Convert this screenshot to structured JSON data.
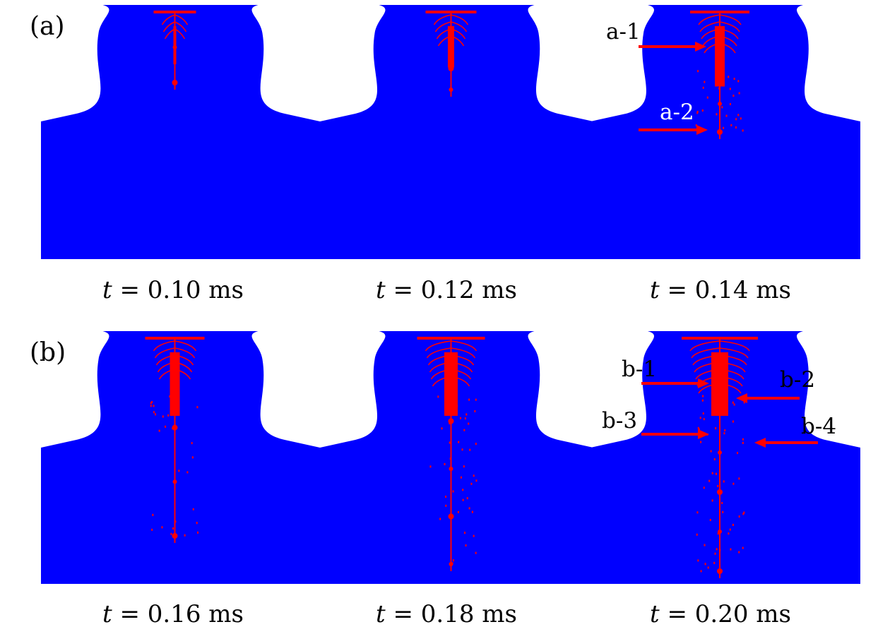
{
  "panels": [
    {
      "label": "(a)",
      "frames": [
        {
          "t_symbol": "t",
          "equals": "=",
          "value": "0.10",
          "unit": "ms"
        },
        {
          "t_symbol": "t",
          "equals": "=",
          "value": "0.12",
          "unit": "ms"
        },
        {
          "t_symbol": "t",
          "equals": "=",
          "value": "0.14",
          "unit": "ms"
        }
      ],
      "annotations": [
        "a-1",
        "a-2"
      ]
    },
    {
      "label": "(b)",
      "frames": [
        {
          "t_symbol": "t",
          "equals": "=",
          "value": "0.16",
          "unit": "ms"
        },
        {
          "t_symbol": "t",
          "equals": "=",
          "value": "0.18",
          "unit": "ms"
        },
        {
          "t_symbol": "t",
          "equals": "=",
          "value": "0.20",
          "unit": "ms"
        }
      ],
      "annotations": [
        "b-1",
        "b-2",
        "b-3",
        "b-4"
      ]
    }
  ],
  "colors": {
    "fluid": "#0000ff",
    "feature": "#ff0000",
    "arrow": "#ff0000",
    "background": "#ffffff",
    "text": "#000000",
    "annotation_on_fluid": "#ffffff"
  }
}
